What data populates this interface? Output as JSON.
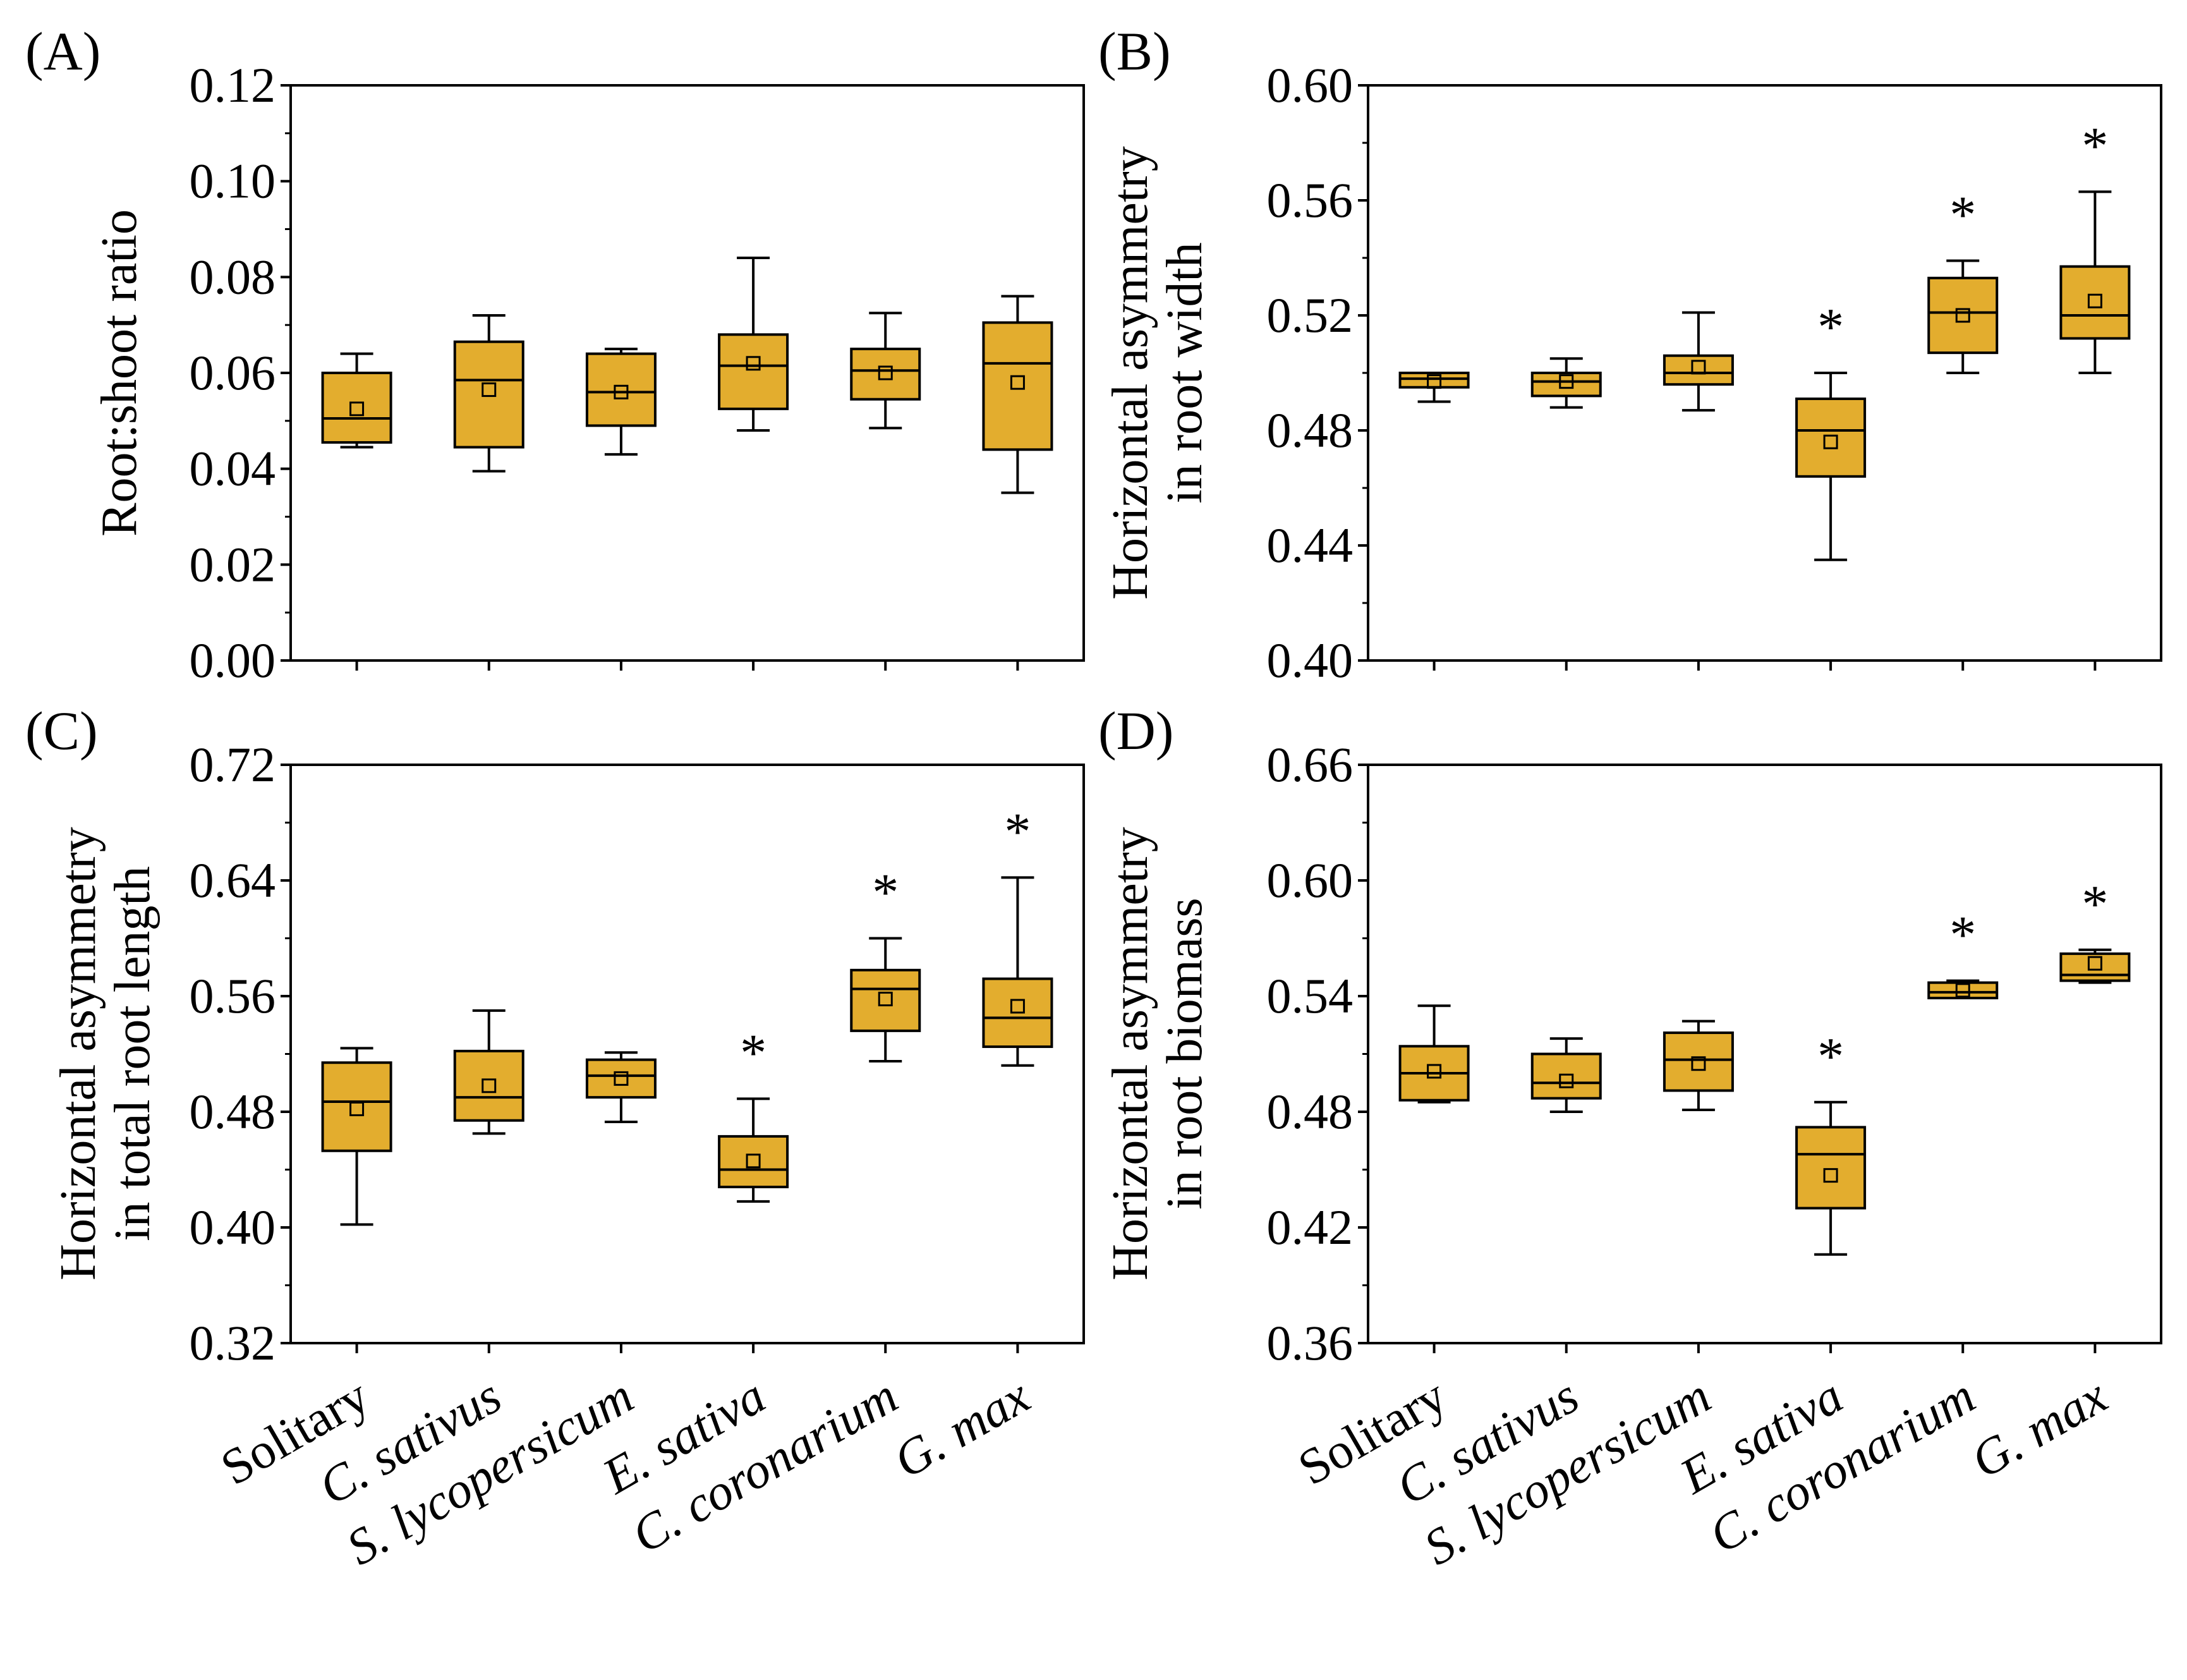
{
  "figure": {
    "categories": [
      "Solitary",
      "C. sativus",
      "S. lycopersicum",
      "E. sativa",
      "C. coronarium",
      "G. max"
    ],
    "italic_categories": [
      false,
      true,
      true,
      true,
      true,
      true
    ],
    "box_color": "#E3AD2E",
    "stroke_color": "#000000"
  },
  "chart_data": [
    {
      "type": "box",
      "panel": "(A)",
      "ylabel": [
        "Root:shoot ratio"
      ],
      "ylim": [
        0.0,
        0.12
      ],
      "ytick_values": [
        0.0,
        0.02,
        0.04,
        0.06,
        0.08,
        0.1,
        0.12
      ],
      "ytick_labels": [
        "0.00",
        "0.02",
        "0.04",
        "0.06",
        "0.08",
        "0.10",
        "0.12"
      ],
      "show_xlabels": false,
      "series": [
        {
          "category": "Solitary",
          "whisker_low": 0.0445,
          "q1": 0.0455,
          "median": 0.0505,
          "q3": 0.06,
          "whisker_high": 0.064,
          "mean": 0.0525,
          "sig": ""
        },
        {
          "category": "C. sativus",
          "whisker_low": 0.0395,
          "q1": 0.0445,
          "median": 0.0585,
          "q3": 0.0665,
          "whisker_high": 0.072,
          "mean": 0.0565,
          "sig": ""
        },
        {
          "category": "S. lycopersicum",
          "whisker_low": 0.043,
          "q1": 0.049,
          "median": 0.056,
          "q3": 0.064,
          "whisker_high": 0.065,
          "mean": 0.056,
          "sig": ""
        },
        {
          "category": "E. sativa",
          "whisker_low": 0.048,
          "q1": 0.0525,
          "median": 0.0615,
          "q3": 0.068,
          "whisker_high": 0.084,
          "mean": 0.062,
          "sig": ""
        },
        {
          "category": "C. coronarium",
          "whisker_low": 0.0485,
          "q1": 0.0545,
          "median": 0.0605,
          "q3": 0.065,
          "whisker_high": 0.0725,
          "mean": 0.06,
          "sig": ""
        },
        {
          "category": "G. max",
          "whisker_low": 0.035,
          "q1": 0.044,
          "median": 0.062,
          "q3": 0.0705,
          "whisker_high": 0.076,
          "mean": 0.058,
          "sig": ""
        }
      ]
    },
    {
      "type": "box",
      "panel": "(B)",
      "ylabel": [
        "Horizontal asymmetry",
        "in root width"
      ],
      "ylim": [
        0.4,
        0.6
      ],
      "ytick_values": [
        0.4,
        0.44,
        0.48,
        0.52,
        0.56,
        0.6
      ],
      "ytick_labels": [
        "0.40",
        "0.44",
        "0.48",
        "0.52",
        "0.56",
        "0.60"
      ],
      "show_xlabels": false,
      "series": [
        {
          "category": "Solitary",
          "whisker_low": 0.49,
          "q1": 0.495,
          "median": 0.498,
          "q3": 0.5,
          "whisker_high": 0.5,
          "mean": 0.497,
          "sig": ""
        },
        {
          "category": "C. sativus",
          "whisker_low": 0.488,
          "q1": 0.492,
          "median": 0.497,
          "q3": 0.5,
          "whisker_high": 0.505,
          "mean": 0.497,
          "sig": ""
        },
        {
          "category": "S. lycopersicum",
          "whisker_low": 0.487,
          "q1": 0.496,
          "median": 0.5,
          "q3": 0.506,
          "whisker_high": 0.521,
          "mean": 0.502,
          "sig": ""
        },
        {
          "category": "E. sativa",
          "whisker_low": 0.435,
          "q1": 0.464,
          "median": 0.48,
          "q3": 0.491,
          "whisker_high": 0.5,
          "mean": 0.476,
          "sig": "*"
        },
        {
          "category": "C. coronarium",
          "whisker_low": 0.5,
          "q1": 0.507,
          "median": 0.521,
          "q3": 0.533,
          "whisker_high": 0.539,
          "mean": 0.52,
          "sig": "*"
        },
        {
          "category": "G. max",
          "whisker_low": 0.5,
          "q1": 0.512,
          "median": 0.52,
          "q3": 0.537,
          "whisker_high": 0.563,
          "mean": 0.525,
          "sig": "*"
        }
      ]
    },
    {
      "type": "box",
      "panel": "(C)",
      "ylabel": [
        "Horizontal asymmetry",
        "in total root length"
      ],
      "ylim": [
        0.32,
        0.72
      ],
      "ytick_values": [
        0.32,
        0.4,
        0.48,
        0.56,
        0.64,
        0.72
      ],
      "ytick_labels": [
        "0.32",
        "0.40",
        "0.48",
        "0.56",
        "0.64",
        "0.72"
      ],
      "show_xlabels": true,
      "series": [
        {
          "category": "Solitary",
          "whisker_low": 0.402,
          "q1": 0.453,
          "median": 0.487,
          "q3": 0.514,
          "whisker_high": 0.524,
          "mean": 0.482,
          "sig": ""
        },
        {
          "category": "C. sativus",
          "whisker_low": 0.465,
          "q1": 0.474,
          "median": 0.49,
          "q3": 0.522,
          "whisker_high": 0.55,
          "mean": 0.498,
          "sig": ""
        },
        {
          "category": "S. lycopersicum",
          "whisker_low": 0.473,
          "q1": 0.49,
          "median": 0.505,
          "q3": 0.516,
          "whisker_high": 0.521,
          "mean": 0.503,
          "sig": ""
        },
        {
          "category": "E. sativa",
          "whisker_low": 0.418,
          "q1": 0.428,
          "median": 0.44,
          "q3": 0.463,
          "whisker_high": 0.489,
          "mean": 0.446,
          "sig": "*"
        },
        {
          "category": "C. coronarium",
          "whisker_low": 0.515,
          "q1": 0.536,
          "median": 0.565,
          "q3": 0.578,
          "whisker_high": 0.6,
          "mean": 0.558,
          "sig": "*"
        },
        {
          "category": "G. max",
          "whisker_low": 0.512,
          "q1": 0.525,
          "median": 0.545,
          "q3": 0.572,
          "whisker_high": 0.642,
          "mean": 0.553,
          "sig": "*"
        }
      ]
    },
    {
      "type": "box",
      "panel": "(D)",
      "ylabel": [
        "Horizontal asymmetry",
        "in root biomass"
      ],
      "ylim": [
        0.36,
        0.66
      ],
      "ytick_values": [
        0.36,
        0.42,
        0.48,
        0.54,
        0.6,
        0.66
      ],
      "ytick_labels": [
        "0.36",
        "0.42",
        "0.48",
        "0.54",
        "0.60",
        "0.66"
      ],
      "show_xlabels": true,
      "series": [
        {
          "category": "Solitary",
          "whisker_low": 0.485,
          "q1": 0.486,
          "median": 0.5,
          "q3": 0.514,
          "whisker_high": 0.535,
          "mean": 0.501,
          "sig": ""
        },
        {
          "category": "C. sativus",
          "whisker_low": 0.48,
          "q1": 0.487,
          "median": 0.495,
          "q3": 0.51,
          "whisker_high": 0.518,
          "mean": 0.496,
          "sig": ""
        },
        {
          "category": "S. lycopersicum",
          "whisker_low": 0.481,
          "q1": 0.491,
          "median": 0.507,
          "q3": 0.521,
          "whisker_high": 0.527,
          "mean": 0.505,
          "sig": ""
        },
        {
          "category": "E. sativa",
          "whisker_low": 0.406,
          "q1": 0.43,
          "median": 0.458,
          "q3": 0.472,
          "whisker_high": 0.485,
          "mean": 0.447,
          "sig": "*"
        },
        {
          "category": "C. coronarium",
          "whisker_low": 0.539,
          "q1": 0.539,
          "median": 0.542,
          "q3": 0.547,
          "whisker_high": 0.548,
          "mean": 0.543,
          "sig": "*"
        },
        {
          "category": "G. max",
          "whisker_low": 0.547,
          "q1": 0.548,
          "median": 0.551,
          "q3": 0.562,
          "whisker_high": 0.564,
          "mean": 0.557,
          "sig": "*"
        }
      ]
    }
  ]
}
